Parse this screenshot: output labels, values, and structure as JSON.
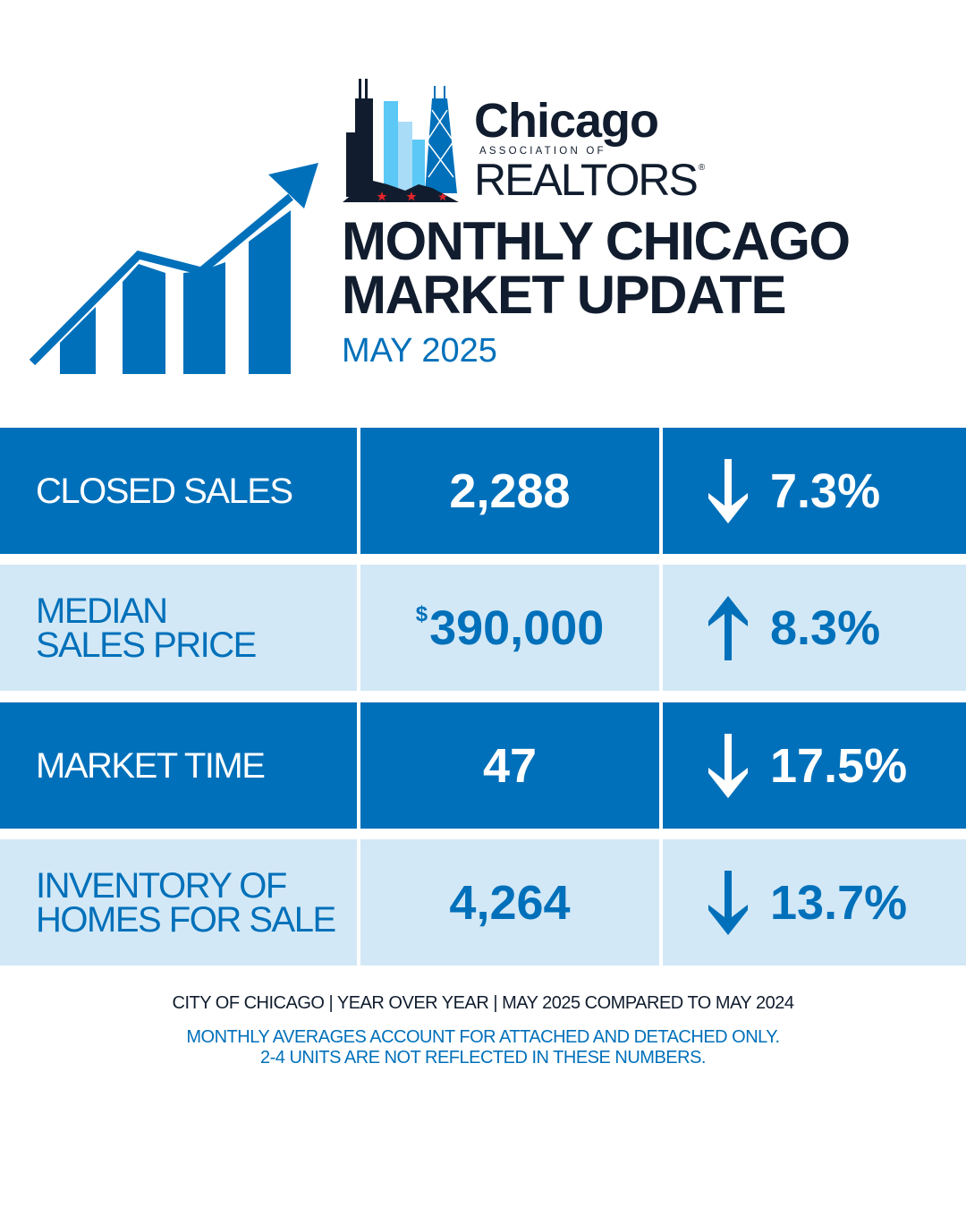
{
  "logo": {
    "name": "Chicago",
    "subtitle": "ASSOCIATION OF",
    "org": "REALTORS",
    "reg": "®"
  },
  "header": {
    "title_line1": "MONTHLY CHICAGO",
    "title_line2": "MARKET UPDATE",
    "date": "MAY 2025"
  },
  "colors": {
    "primary": "#0070ba",
    "light": "#d2e8f6",
    "dark": "#111d2e"
  },
  "rows": [
    {
      "label": "CLOSED SALES",
      "value": "2,288",
      "change": "7.3%",
      "direction": "down"
    },
    {
      "label_line1": "MEDIAN",
      "label_line2": "SALES PRICE",
      "currency": "$",
      "value": "390,000",
      "change": "8.3%",
      "direction": "up"
    },
    {
      "label": "MARKET TIME",
      "value": "47",
      "change": "17.5%",
      "direction": "down"
    },
    {
      "label_line1": "INVENTORY OF",
      "label_line2": "HOMES FOR SALE",
      "value": "4,264",
      "change": "13.7%",
      "direction": "down"
    }
  ],
  "footer": {
    "comparison": "CITY OF CHICAGO | YEAR OVER YEAR | MAY 2025 COMPARED TO MAY 2024",
    "note_line1": "MONTHLY AVERAGES ACCOUNT FOR ATTACHED AND DETACHED ONLY.",
    "note_line2": "2-4 UNITS ARE NOT REFLECTED IN THESE NUMBERS."
  }
}
